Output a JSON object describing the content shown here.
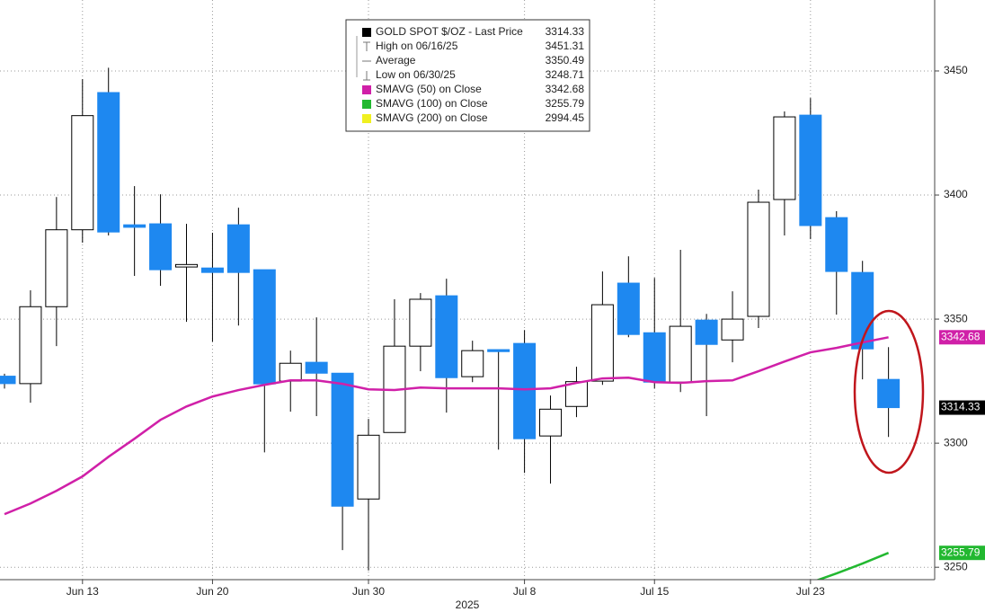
{
  "chart_data": {
    "type": "candlestick",
    "x_label": "2025",
    "categories": [
      null,
      null,
      null,
      "Jun 13",
      null,
      null,
      null,
      null,
      "Jun 20",
      null,
      null,
      null,
      null,
      null,
      "Jun 30",
      null,
      null,
      null,
      null,
      null,
      "Jul 8",
      null,
      null,
      null,
      null,
      "Jul 15",
      null,
      null,
      null,
      null,
      null,
      "Jul 23",
      null,
      null,
      null
    ],
    "open": [
      3327,
      3324,
      3355,
      3386,
      3441.3,
      3388,
      3388.4,
      3371,
      3370.6,
      3388,
      3369.9,
      3325,
      3332.6,
      3328.2,
      3277.5,
      3304.3,
      3339.1,
      3359.4,
      3326.8,
      3337.7,
      3340.2,
      3302.9,
      3314.8,
      3325,
      3364.5,
      3344.5,
      3324.6,
      3349.6,
      3341.6,
      3351.1,
      3398.2,
      3432.2,
      3390.9,
      3368.8,
      3325.7
    ],
    "high": [
      3328,
      3361.6,
      3399.2,
      3446.7,
      3451.31,
      3403.6,
      3400.3,
      3388.4,
      3384.8,
      3394.9,
      3369.9,
      3337.3,
      3350.7,
      3328.2,
      3309.8,
      3358,
      3360.5,
      3366.3,
      3341.3,
      3337.7,
      3345.6,
      3319.2,
      3330.8,
      3369.2,
      3375.3,
      3366.6,
      3377.9,
      3352.1,
      3361.2,
      3402.2,
      3433.7,
      3439.1,
      3393.5,
      3373.5,
      3338.7
    ],
    "low": [
      3322,
      3316.3,
      3339.1,
      3380.8,
      3383.7,
      3367.4,
      3363.4,
      3348.9,
      3340.9,
      3347.4,
      3296.3,
      3312.7,
      3310.9,
      3256.9,
      3248.71,
      3304.3,
      3329,
      3312.3,
      3324.6,
      3297.4,
      3288,
      3283.7,
      3310.5,
      3323.5,
      3342.7,
      3322.1,
      3320.6,
      3310.9,
      3332.6,
      3346.4,
      3383.7,
      3382.2,
      3351.8,
      3325.7,
      3302.5
    ],
    "close": [
      3324,
      3355,
      3386,
      3432,
      3385.1,
      3387,
      3369.9,
      3372,
      3368.8,
      3368.8,
      3323.9,
      3332.2,
      3328.2,
      3274.6,
      3303.2,
      3339.1,
      3358,
      3326.4,
      3337.3,
      3336.9,
      3301.8,
      3313.7,
      3324.8,
      3355.8,
      3343.8,
      3324.6,
      3347.1,
      3339.8,
      3350,
      3397.1,
      3431.5,
      3387.7,
      3369.2,
      3338,
      3314.33
    ],
    "up_color": "#ffffff",
    "down_color": "#1e88f0",
    "series": [
      {
        "name": "SMAVG (50)  on Close",
        "color": "#d020a8",
        "values": [
          3271.4,
          3275.7,
          3280.8,
          3286.6,
          3294.5,
          3301.8,
          3309.4,
          3314.8,
          3318.8,
          3321.4,
          3323.5,
          3325.3,
          3325.3,
          3323.9,
          3321.7,
          3321.4,
          3322.4,
          3322.1,
          3322.1,
          3322.1,
          3321.7,
          3322.1,
          3324.3,
          3326.1,
          3326.4,
          3324.6,
          3324.3,
          3325,
          3325.3,
          3329,
          3332.9,
          3336.6,
          3338.4,
          3340.6,
          3342.68
        ]
      },
      {
        "name": "SMAVG (100)  on Close",
        "color": "#22b830",
        "values": [
          null,
          null,
          null,
          null,
          null,
          null,
          null,
          null,
          null,
          null,
          null,
          null,
          null,
          null,
          null,
          null,
          null,
          null,
          null,
          null,
          null,
          null,
          null,
          null,
          null,
          null,
          null,
          null,
          null,
          null,
          null,
          3243.8,
          3247.5,
          3251.5,
          3255.79
        ]
      }
    ],
    "legend": [
      {
        "label": "GOLD SPOT $/OZ - Last Price",
        "value": 3314.33,
        "color": "#000000"
      },
      {
        "label": "High on 06/16/25",
        "value": 3451.31
      },
      {
        "label": "Average",
        "value": 3350.49
      },
      {
        "label": "Low on 06/30/25",
        "value": 3248.71
      },
      {
        "label": "SMAVG (50)  on Close",
        "value": 3342.68,
        "color": "#d020a8"
      },
      {
        "label": "SMAVG (100)  on Close",
        "value": 3255.79,
        "color": "#22b830"
      },
      {
        "label": "SMAVG (200)  on Close",
        "value": 2994.45,
        "color": "#f0f020"
      }
    ],
    "ylim": [
      3245,
      3478.6
    ],
    "yticks": [
      3250,
      3300,
      3350,
      3400,
      3450
    ],
    "grid": true
  }
}
